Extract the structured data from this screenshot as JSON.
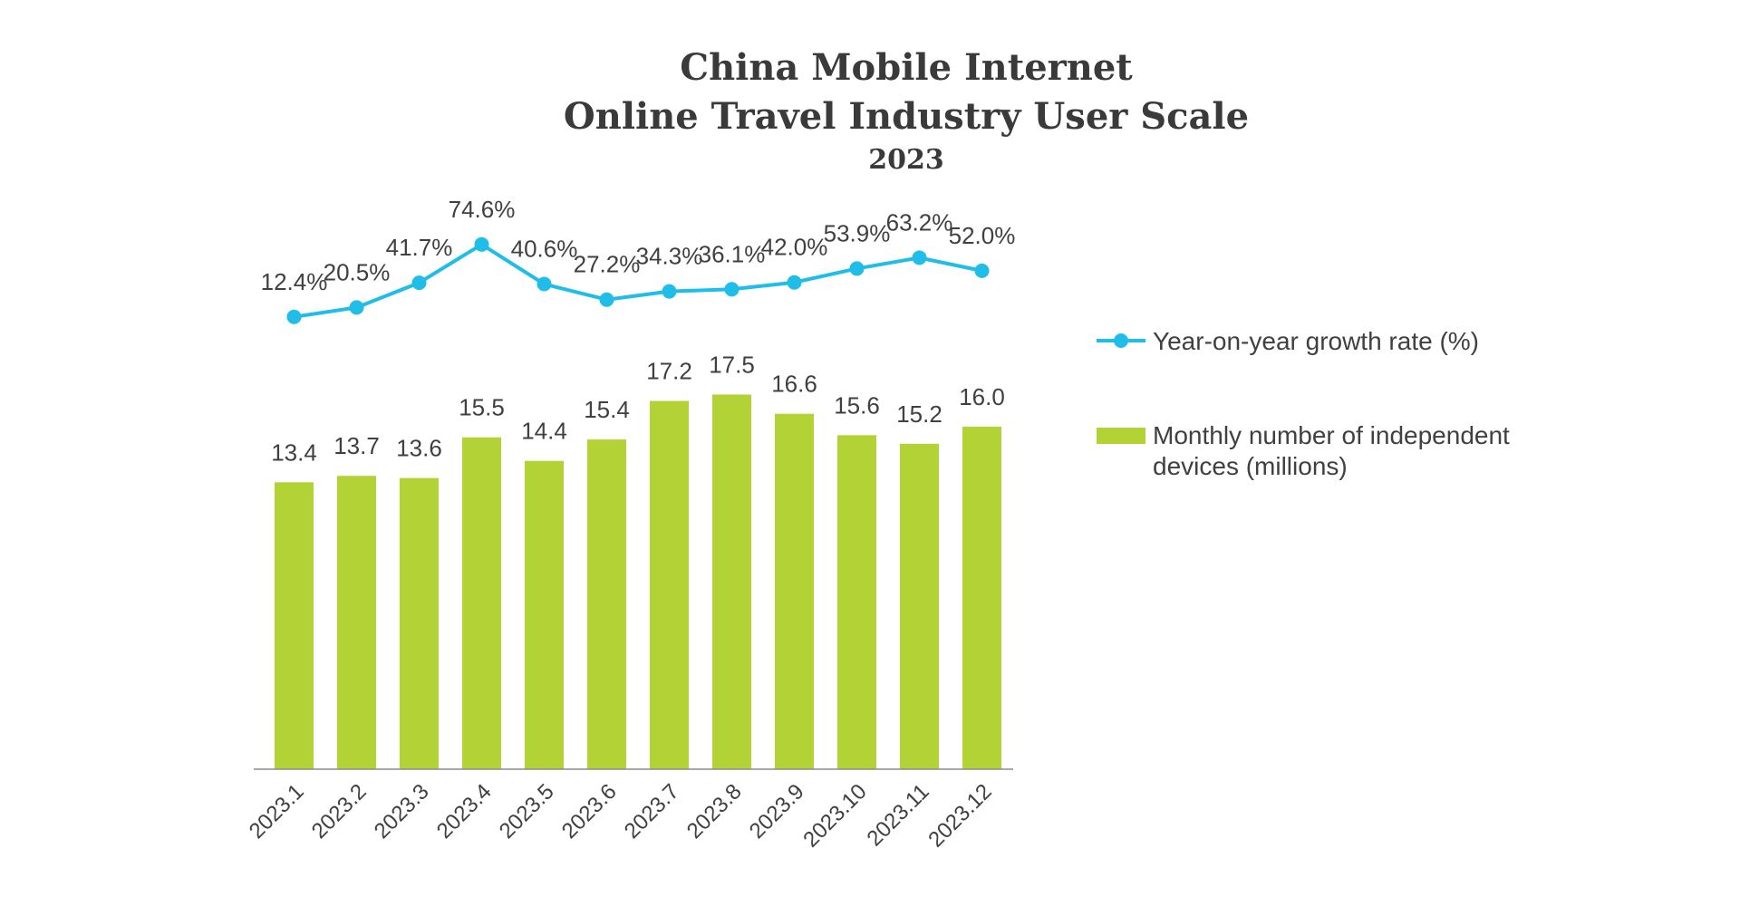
{
  "chart_data": {
    "type": "bar",
    "title": "China Mobile Internet",
    "title_line2": "Online Travel Industry User Scale",
    "subtitle": "2023",
    "categories": [
      "2023.1",
      "2023.2",
      "2023.3",
      "2023.4",
      "2023.5",
      "2023.6",
      "2023.7",
      "2023.8",
      "2023.9",
      "2023.10",
      "2023.11",
      "2023.12"
    ],
    "series": [
      {
        "name": "Monthly number of independent devices (millions)",
        "name_line1": "Monthly number of independent",
        "name_line2": "devices (millions)",
        "type": "bar",
        "color": "#b2d235",
        "values": [
          13.4,
          13.7,
          13.6,
          15.5,
          14.4,
          15.4,
          17.2,
          17.5,
          16.6,
          15.6,
          15.2,
          16.0
        ],
        "labels": [
          "13.4",
          "13.7",
          "13.6",
          "15.5",
          "14.4",
          "15.4",
          "17.2",
          "17.5",
          "16.6",
          "15.6",
          "15.2",
          "16.0"
        ]
      },
      {
        "name": "Year-on-year growth rate (%)",
        "type": "line",
        "color": "#1fbde8",
        "values": [
          12.4,
          20.5,
          41.7,
          74.6,
          40.6,
          27.2,
          34.3,
          36.1,
          42.0,
          53.9,
          63.2,
          52.0
        ],
        "labels": [
          "12.4%",
          "20.5%",
          "41.7%",
          "74.6%",
          "40.6%",
          "27.2%",
          "34.3%",
          "36.1%",
          "42.0%",
          "53.9%",
          "63.2%",
          "52.0%"
        ]
      }
    ],
    "bar_ylim": [
      0,
      19
    ],
    "line_ylim": [
      -330,
      90
    ],
    "legend_position": "right"
  }
}
